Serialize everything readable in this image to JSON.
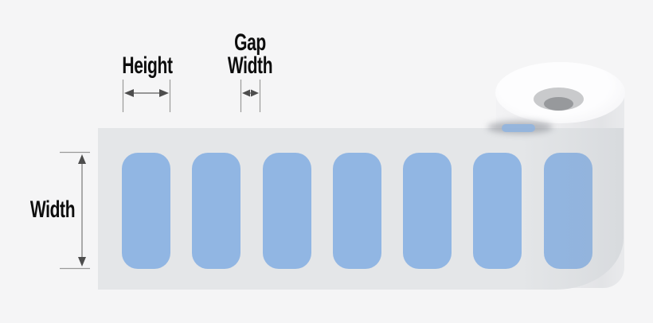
{
  "page": {
    "background_color": "#f5f5f6"
  },
  "diagram": {
    "dimension_annotations": {
      "height": {
        "label": "Height"
      },
      "gap_width": {
        "line1": "Gap",
        "line2": "Width"
      },
      "width": {
        "label": "Width"
      }
    },
    "roll": {
      "label_count": 7,
      "label_color": "#91b6e3",
      "liner_color": "#e4e6e8",
      "roll_face_color": "#fdfdfe",
      "core_ring_color": "#c9cacc",
      "core_hole_color": "#97999c"
    },
    "annotation_line_color": "#9a9a9a",
    "arrowhead_color": "#4d4d4d"
  }
}
